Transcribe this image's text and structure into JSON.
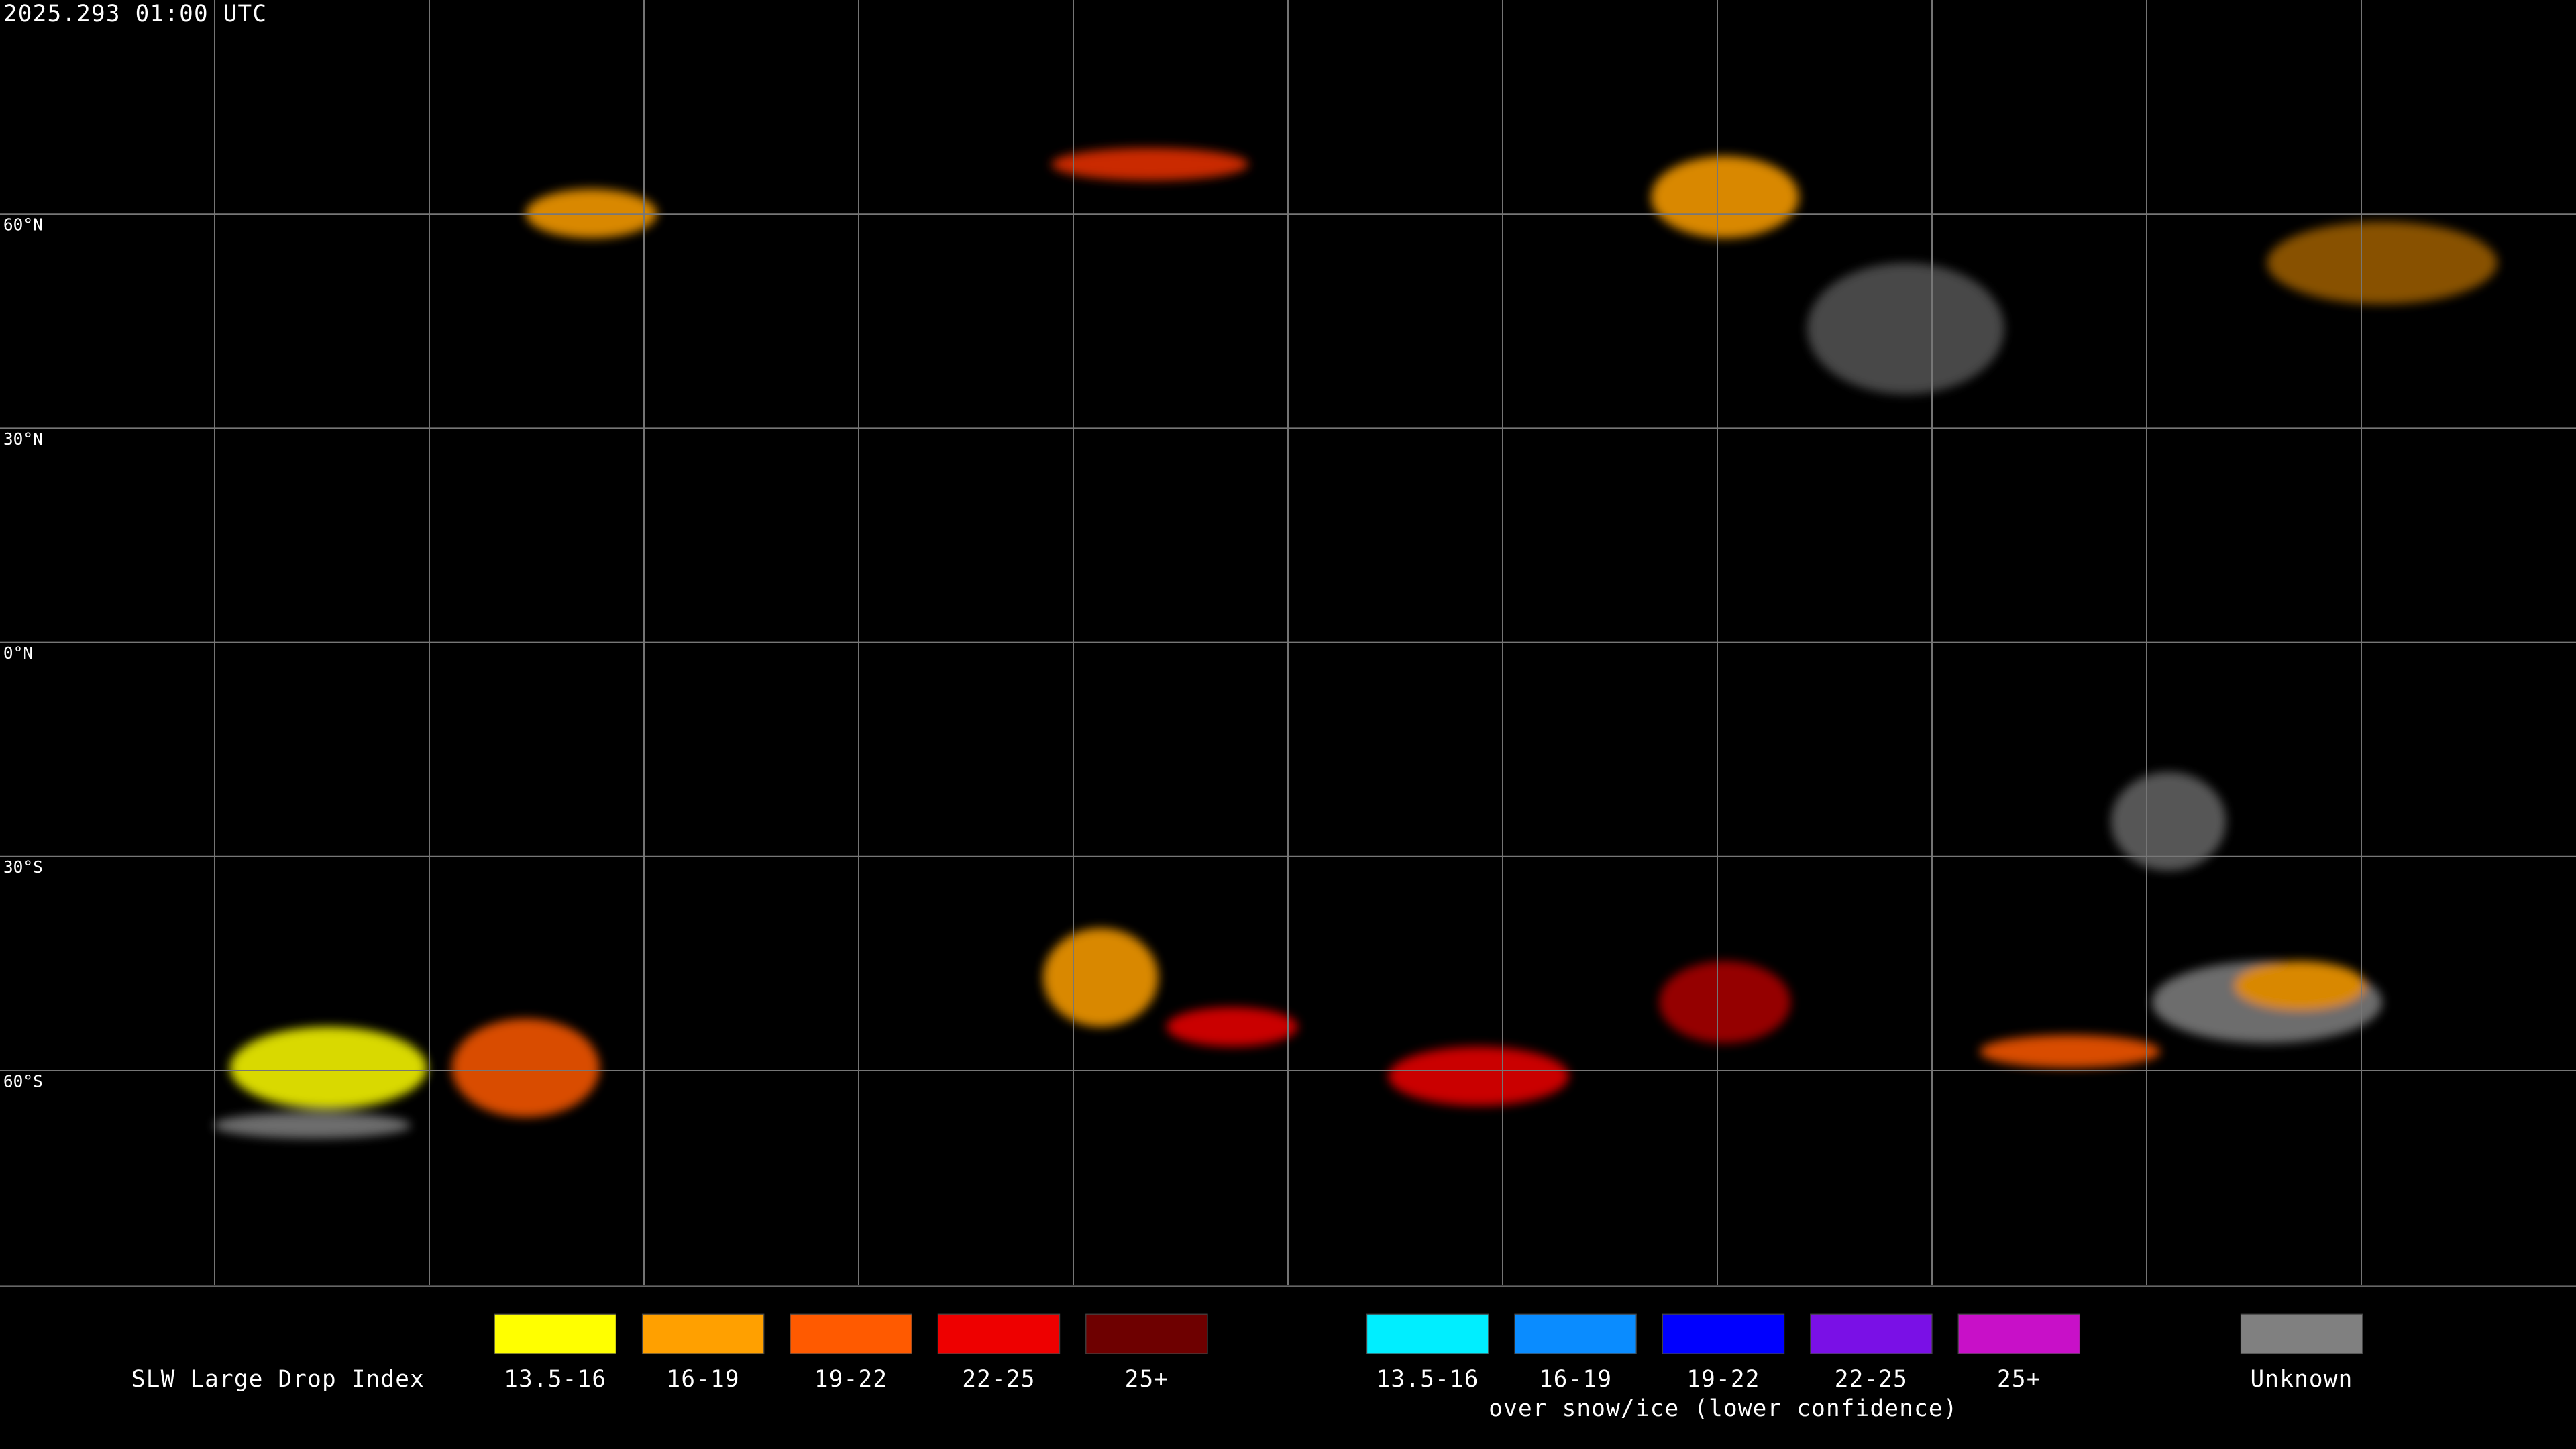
{
  "timestamp": "2025.293 01:00 UTC",
  "latitude_labels": [
    "60°N",
    "30°N",
    "0°N",
    "30°S",
    "60°S"
  ],
  "legend": {
    "title": "SLW Large Drop Index",
    "liquid": [
      {
        "label": "13.5-16",
        "color": "#ffff00"
      },
      {
        "label": "16-19",
        "color": "#ffa000"
      },
      {
        "label": "19-22",
        "color": "#ff5a00"
      },
      {
        "label": "22-25",
        "color": "#ee0000"
      },
      {
        "label": "25+",
        "color": "#6e0000"
      }
    ],
    "snow_ice": [
      {
        "label": "13.5-16",
        "color": "#00eeff"
      },
      {
        "label": "16-19",
        "color": "#0a8cff"
      },
      {
        "label": "19-22",
        "color": "#0000ff"
      },
      {
        "label": "22-25",
        "color": "#7a10e6"
      },
      {
        "label": "25+",
        "color": "#c810c8"
      }
    ],
    "snow_ice_note": "over snow/ice (lower confidence)",
    "unknown": {
      "label": "Unknown",
      "color": "#808080"
    }
  }
}
